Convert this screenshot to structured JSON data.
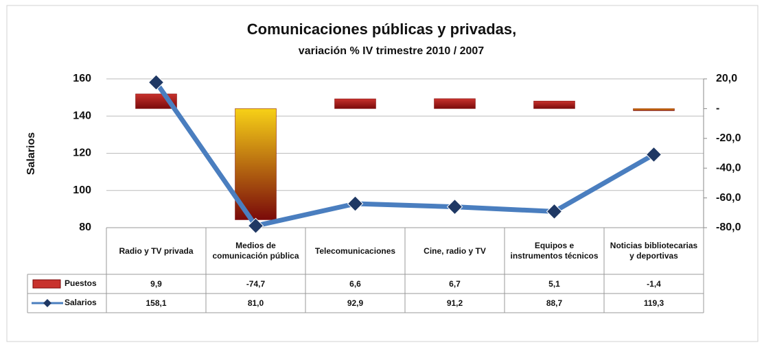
{
  "chart_data": {
    "type": "bar_line",
    "title": "Comunicaciones públicas y privadas,",
    "subtitle": "variación % IV trimestre 2010 / 2007",
    "y_label": "Salarios",
    "categories": [
      "Radio y TV privada",
      "Medios de comunicación pública",
      "Telecomunicaciones",
      "Cine, radio y TV",
      "Equipos e instrumentos técnicos",
      "Noticias bibliotecarias y deportivas"
    ],
    "series": [
      {
        "name": "Puestos",
        "type": "bar",
        "axis": "y2",
        "color": "#c8322d",
        "point_colors": [
          "#c8322d",
          "#f7d117",
          "#c8322d",
          "#c8322d",
          "#c8322d",
          "#f7a800"
        ],
        "values": [
          9.9,
          -74.7,
          6.6,
          6.7,
          5.1,
          -1.4
        ],
        "value_labels": [
          "9,9",
          "-74,7",
          "6,6",
          "6,7",
          "5,1",
          "-1,4"
        ]
      },
      {
        "name": "Salarios",
        "type": "line",
        "axis": "y",
        "color": "#4a7ebf",
        "marker_color": "#1f3864",
        "values": [
          158.1,
          81.0,
          92.9,
          91.2,
          88.7,
          119.3
        ],
        "value_labels": [
          "158,1",
          "81,0",
          "92,9",
          "91,2",
          "88,7",
          "119,3"
        ]
      }
    ],
    "ylim": [
      80,
      160
    ],
    "yticks": [
      80,
      100,
      120,
      140,
      160
    ],
    "y2lim": [
      -80,
      20
    ],
    "y2ticks": [
      {
        "value": -80,
        "label": "-80,0"
      },
      {
        "value": -60,
        "label": "-60,0"
      },
      {
        "value": -40,
        "label": "-40,0"
      },
      {
        "value": -20,
        "label": "-20,0"
      },
      {
        "value": 0,
        "label": "-"
      },
      {
        "value": 20,
        "label": "20,0"
      }
    ],
    "grid": true
  }
}
